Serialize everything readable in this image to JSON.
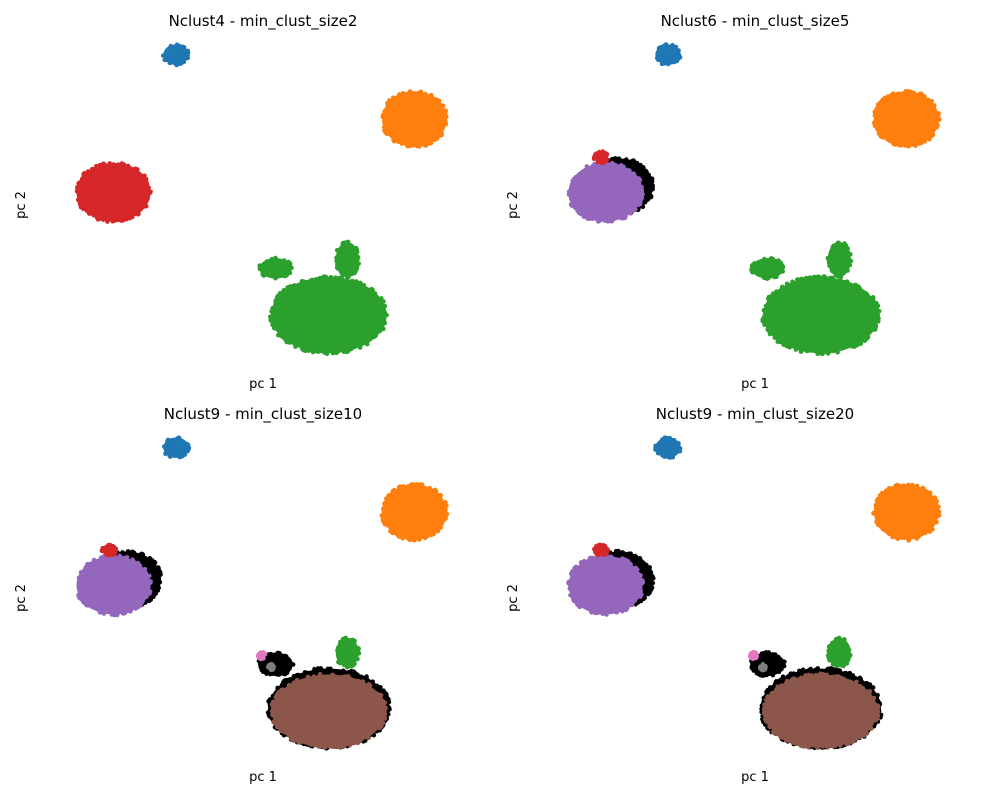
{
  "colors": {
    "blue": "#1f77b4",
    "orange": "#ff7f0e",
    "green": "#2ca02c",
    "red": "#d62728",
    "purple": "#9467bd",
    "brown": "#8c564b",
    "pink": "#e377c2",
    "gray": "#7f7f7f",
    "noise": "#000000"
  },
  "chart_data": [
    {
      "type": "scatter",
      "title": "Nclust4 - min_clust_size2",
      "xlabel": "pc 1",
      "ylabel": "pc 2",
      "grid": false,
      "axes_visible": false,
      "clusters": [
        {
          "color": "blue",
          "cx": -4.9,
          "cy": 5.0,
          "rx": 0.55,
          "ry": 0.35
        },
        {
          "color": "orange",
          "cx": 5.4,
          "cy": 2.8,
          "rx": 1.4,
          "ry": 0.95
        },
        {
          "color": "red",
          "cx": -7.6,
          "cy": 0.3,
          "rx": 1.6,
          "ry": 1.0
        },
        {
          "color": "green",
          "cx": 1.7,
          "cy": -3.9,
          "rx": 2.5,
          "ry": 1.3
        },
        {
          "color": "green",
          "cx": -0.6,
          "cy": -2.3,
          "rx": 0.7,
          "ry": 0.35
        },
        {
          "color": "green",
          "cx": 2.5,
          "cy": -2.0,
          "rx": 0.5,
          "ry": 0.6
        }
      ]
    },
    {
      "type": "scatter",
      "title": "Nclust6 - min_clust_size5",
      "xlabel": "pc 1",
      "ylabel": "pc 2",
      "grid": false,
      "axes_visible": false,
      "clusters": [
        {
          "color": "blue",
          "cx": -4.9,
          "cy": 5.0,
          "rx": 0.55,
          "ry": 0.35
        },
        {
          "color": "orange",
          "cx": 5.4,
          "cy": 2.8,
          "rx": 1.4,
          "ry": 0.95
        },
        {
          "color": "noise",
          "cx": -7.0,
          "cy": 0.5,
          "rx": 1.45,
          "ry": 0.95
        },
        {
          "color": "purple",
          "cx": -7.6,
          "cy": 0.3,
          "rx": 1.6,
          "ry": 1.0
        },
        {
          "color": "red",
          "cx": -7.8,
          "cy": 1.5,
          "rx": 0.3,
          "ry": 0.2
        },
        {
          "color": "green",
          "cx": 1.7,
          "cy": -3.9,
          "rx": 2.5,
          "ry": 1.3
        },
        {
          "color": "green",
          "cx": -0.6,
          "cy": -2.3,
          "rx": 0.7,
          "ry": 0.35
        },
        {
          "color": "green",
          "cx": 2.5,
          "cy": -2.0,
          "rx": 0.5,
          "ry": 0.6
        }
      ]
    },
    {
      "type": "scatter",
      "title": "Nclust9 - min_clust_size10",
      "xlabel": "pc 1",
      "ylabel": "pc 2",
      "grid": false,
      "axes_visible": false,
      "clusters": [
        {
          "color": "blue",
          "cx": -4.9,
          "cy": 5.0,
          "rx": 0.55,
          "ry": 0.35
        },
        {
          "color": "orange",
          "cx": 5.4,
          "cy": 2.8,
          "rx": 1.4,
          "ry": 0.95
        },
        {
          "color": "noise",
          "cx": -7.0,
          "cy": 0.5,
          "rx": 1.45,
          "ry": 0.95
        },
        {
          "color": "purple",
          "cx": -7.6,
          "cy": 0.3,
          "rx": 1.6,
          "ry": 1.0
        },
        {
          "color": "red",
          "cx": -7.8,
          "cy": 1.5,
          "rx": 0.3,
          "ry": 0.2
        },
        {
          "color": "noise",
          "cx": 1.7,
          "cy": -3.9,
          "rx": 2.6,
          "ry": 1.35
        },
        {
          "color": "noise",
          "cx": -0.6,
          "cy": -2.4,
          "rx": 0.75,
          "ry": 0.4
        },
        {
          "color": "brown",
          "cx": 1.7,
          "cy": -4.0,
          "rx": 2.45,
          "ry": 1.25
        },
        {
          "color": "green",
          "cx": 2.5,
          "cy": -2.0,
          "rx": 0.5,
          "ry": 0.5
        },
        {
          "color": "pink",
          "cx": -1.2,
          "cy": -2.1,
          "rx": 0.15,
          "ry": 0.12
        },
        {
          "color": "gray",
          "cx": -0.8,
          "cy": -2.5,
          "rx": 0.12,
          "ry": 0.1
        }
      ]
    },
    {
      "type": "scatter",
      "title": "Nclust9 - min_clust_size20",
      "xlabel": "pc 1",
      "ylabel": "pc 2",
      "grid": false,
      "axes_visible": false,
      "clusters": [
        {
          "color": "blue",
          "cx": -4.9,
          "cy": 5.0,
          "rx": 0.55,
          "ry": 0.35
        },
        {
          "color": "orange",
          "cx": 5.4,
          "cy": 2.8,
          "rx": 1.4,
          "ry": 0.95
        },
        {
          "color": "noise",
          "cx": -7.0,
          "cy": 0.5,
          "rx": 1.45,
          "ry": 0.95
        },
        {
          "color": "purple",
          "cx": -7.6,
          "cy": 0.3,
          "rx": 1.6,
          "ry": 1.0
        },
        {
          "color": "red",
          "cx": -7.8,
          "cy": 1.5,
          "rx": 0.3,
          "ry": 0.2
        },
        {
          "color": "noise",
          "cx": 1.7,
          "cy": -3.9,
          "rx": 2.6,
          "ry": 1.35
        },
        {
          "color": "noise",
          "cx": -0.6,
          "cy": -2.4,
          "rx": 0.75,
          "ry": 0.4
        },
        {
          "color": "brown",
          "cx": 1.7,
          "cy": -4.0,
          "rx": 2.45,
          "ry": 1.25
        },
        {
          "color": "green",
          "cx": 2.5,
          "cy": -2.0,
          "rx": 0.5,
          "ry": 0.5
        },
        {
          "color": "pink",
          "cx": -1.2,
          "cy": -2.1,
          "rx": 0.15,
          "ry": 0.12
        },
        {
          "color": "gray",
          "cx": -0.8,
          "cy": -2.5,
          "rx": 0.12,
          "ry": 0.1
        }
      ]
    }
  ]
}
